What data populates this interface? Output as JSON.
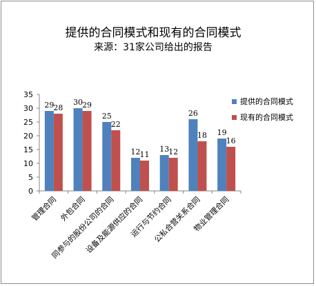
{
  "chart_data": {
    "type": "bar",
    "title": "提供的合同模式和现有的合同模式",
    "subtitle": "来源：31家公司给出的报告",
    "categories": [
      "管理合同",
      "外包合同",
      "同参与的股份公司的合同",
      "设备及能源供应的合同",
      "运行与节约合同",
      "公私合营关系合同",
      "物业管理合同"
    ],
    "series": [
      {
        "name": "提供的合同模式",
        "color": "#4f81bd",
        "values": [
          29,
          30,
          25,
          12,
          13,
          26,
          19
        ]
      },
      {
        "name": "现有的合同模式",
        "color": "#c0504d",
        "values": [
          28,
          29,
          22,
          11,
          12,
          18,
          16
        ]
      }
    ],
    "ylim": [
      0,
      35
    ],
    "yticks": [
      0,
      5,
      10,
      15,
      20,
      25,
      30,
      35
    ],
    "legend_position": "right",
    "grid": false
  }
}
